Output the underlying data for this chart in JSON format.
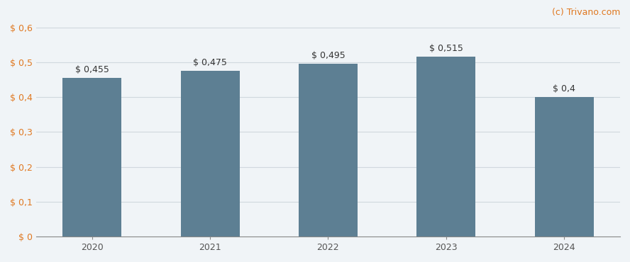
{
  "categories": [
    "2020",
    "2021",
    "2022",
    "2023",
    "2024"
  ],
  "values": [
    0.455,
    0.475,
    0.495,
    0.515,
    0.4
  ],
  "bar_labels": [
    "$ 0,455",
    "$ 0,475",
    "$ 0,495",
    "$ 0,515",
    "$ 0,4"
  ],
  "bar_color": "#5d7f93",
  "background_color": "#f0f4f7",
  "ylim": [
    0,
    0.65
  ],
  "yticks": [
    0,
    0.1,
    0.2,
    0.3,
    0.4,
    0.5,
    0.6
  ],
  "ytick_labels": [
    "$ 0",
    "$ 0,1",
    "$ 0,2",
    "$ 0,3",
    "$ 0,4",
    "$ 0,5",
    "$ 0,6"
  ],
  "watermark": "(c) Trivano.com",
  "grid_color": "#d0d8de",
  "bar_width": 0.5,
  "label_fontsize": 9,
  "tick_fontsize": 9,
  "watermark_fontsize": 9,
  "axis_label_color": "#e07820",
  "tick_label_color": "#e07820",
  "watermark_color": "#e07820"
}
